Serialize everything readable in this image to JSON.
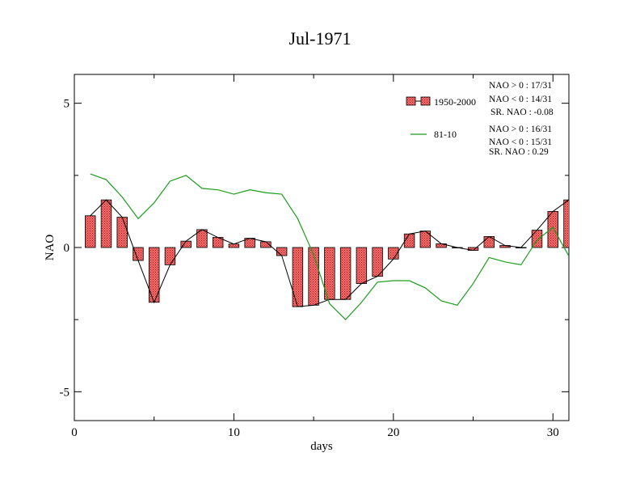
{
  "chart_data": {
    "type": "bar",
    "title": "Jul-1971",
    "xlabel": "days",
    "ylabel": "NAO",
    "xlim": [
      0,
      31
    ],
    "ylim": [
      -6,
      6
    ],
    "xticks": [
      0,
      10,
      20,
      30
    ],
    "yticks": [
      -5,
      0,
      5
    ],
    "grid": false,
    "legend_placement": "top-right",
    "colors": {
      "bars": "#ff6b6b",
      "bar_line": "#000000",
      "green_line": "#1a9e1a"
    },
    "series": [
      {
        "name": "1950-2000",
        "kind": "bar+line",
        "x": [
          1,
          2,
          3,
          4,
          5,
          6,
          7,
          8,
          9,
          10,
          11,
          12,
          13,
          14,
          15,
          16,
          17,
          18,
          19,
          20,
          21,
          22,
          23,
          24,
          25,
          26,
          27,
          28,
          29,
          30,
          31
        ],
        "values": [
          1.1,
          1.65,
          1.05,
          -0.45,
          -1.9,
          -0.6,
          0.22,
          0.62,
          0.35,
          0.12,
          0.32,
          0.2,
          -0.28,
          -2.05,
          -2.0,
          -1.8,
          -1.8,
          -1.25,
          -1.0,
          -0.4,
          0.47,
          0.57,
          0.13,
          0.0,
          -0.1,
          0.38,
          0.07,
          0.0,
          0.6,
          1.25,
          1.65
        ]
      },
      {
        "name": "81-10",
        "kind": "line",
        "x": [
          1,
          2,
          3,
          4,
          5,
          6,
          7,
          8,
          9,
          10,
          11,
          12,
          13,
          14,
          15,
          16,
          17,
          18,
          19,
          20,
          21,
          22,
          23,
          24,
          25,
          26,
          27,
          28,
          29,
          30,
          31
        ],
        "values": [
          2.55,
          2.35,
          1.75,
          1.0,
          1.55,
          2.3,
          2.5,
          2.05,
          2.0,
          1.85,
          2.0,
          1.9,
          1.85,
          1.0,
          -0.25,
          -1.95,
          -2.5,
          -1.9,
          -1.2,
          -1.15,
          -1.15,
          -1.4,
          -1.85,
          -2.0,
          -1.25,
          -0.35,
          -0.5,
          -0.6,
          0.25,
          0.7,
          -0.3
        ]
      }
    ],
    "stats": {
      "set1": [
        "NAO > 0 : 17/31",
        "NAO < 0 : 14/31",
        "SR. NAO : -0.08"
      ],
      "set2": [
        "NAO > 0 : 16/31",
        "NAO < 0 : 15/31",
        "SR. NAO :  0.29"
      ]
    }
  }
}
